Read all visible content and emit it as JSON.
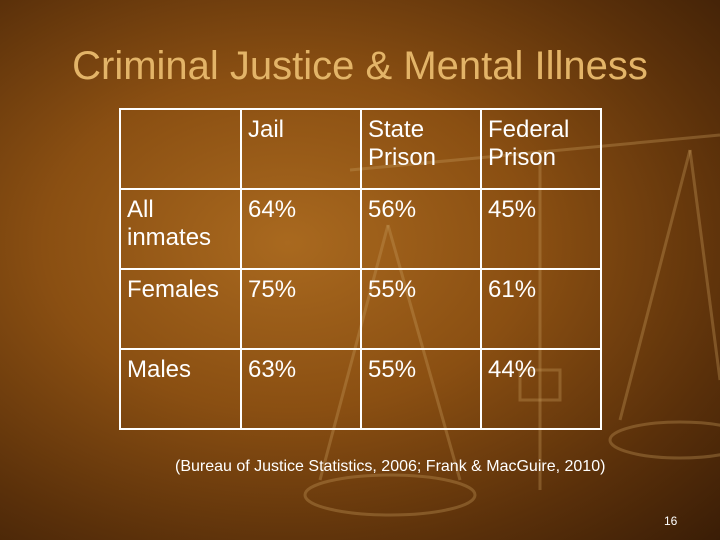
{
  "title": "Criminal Justice & Mental Illness",
  "table": {
    "header": [
      "Jail",
      "State Prison",
      "Federal Prison"
    ],
    "rows": [
      [
        "All inmates",
        "64%",
        "56%",
        "45%"
      ],
      [
        "Females",
        "75%",
        "55%",
        "61%"
      ],
      [
        "Males",
        "63%",
        "55%",
        "44%"
      ]
    ]
  },
  "source": "(Bureau of Justice Statistics, 2006; Frank & MacGuire, 2010)",
  "slide_number": "16"
}
